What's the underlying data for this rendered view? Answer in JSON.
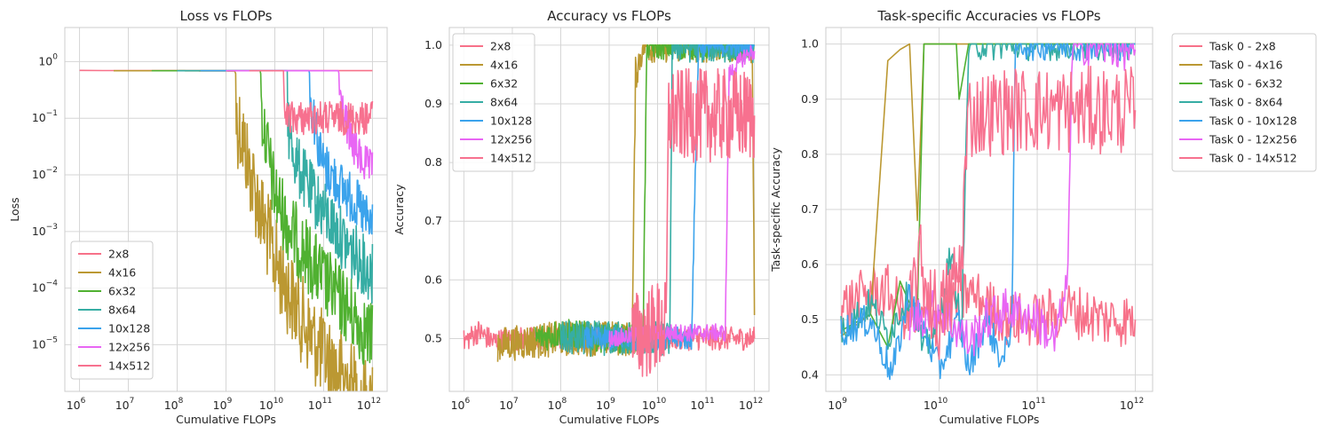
{
  "colors": {
    "2x8": "#f77189",
    "4x16": "#bb9832",
    "6x32": "#50b131",
    "8x64": "#36ada4",
    "10x128": "#3ba3ec",
    "12x256": "#e866f4",
    "14x512": "#f7718f"
  },
  "chart_data": [
    {
      "type": "line",
      "title": "Loss vs FLOPs",
      "xlabel": "Cumulative FLOPs",
      "ylabel": "Loss",
      "xscale": "log",
      "yscale": "log",
      "xlim": [
        500000,
        2000000000000
      ],
      "ylim": [
        1.5e-06,
        4
      ],
      "xticks": [
        {
          "value": 1000000.0,
          "base": "10",
          "exp": "6"
        },
        {
          "value": 10000000.0,
          "base": "10",
          "exp": "7"
        },
        {
          "value": 100000000.0,
          "base": "10",
          "exp": "8"
        },
        {
          "value": 1000000000.0,
          "base": "10",
          "exp": "9"
        },
        {
          "value": 10000000000.0,
          "base": "10",
          "exp": "10"
        },
        {
          "value": 100000000000.0,
          "base": "10",
          "exp": "11"
        },
        {
          "value": 1000000000000.0,
          "base": "10",
          "exp": "12"
        }
      ],
      "yticks": [
        {
          "value": 1e-05,
          "base": "10",
          "exp": "−5"
        },
        {
          "value": 0.0001,
          "base": "10",
          "exp": "−4"
        },
        {
          "value": 0.001,
          "base": "10",
          "exp": "−3"
        },
        {
          "value": 0.01,
          "base": "10",
          "exp": "−2"
        },
        {
          "value": 0.1,
          "base": "10",
          "exp": "−1"
        },
        {
          "value": 1,
          "base": "10",
          "exp": "0"
        }
      ],
      "grid": true,
      "legend": "lower-left",
      "series": [
        {
          "name": "2x8",
          "x": [
            1000000.0,
            3000000.0,
            10000000.0,
            100000000.0,
            1000000000.0,
            10000000000.0,
            100000000000.0,
            1000000000000.0
          ],
          "y": [
            0.7,
            0.695,
            0.694,
            0.693,
            0.693,
            0.693,
            0.693,
            0.693
          ]
        },
        {
          "name": "4x16",
          "x": [
            5000000.0,
            100000000.0,
            1500000000.0,
            2000000000.0,
            3000000000.0,
            5000000000.0,
            10000000000.0,
            20000000000.0,
            50000000000.0,
            100000000000.0,
            300000000000.0,
            1000000000000.0
          ],
          "y": [
            0.69,
            0.69,
            0.68,
            0.4,
            0.08,
            0.015,
            0.002,
            0.0005,
            0.0001,
            4e-05,
            1.5e-05,
            4e-06
          ],
          "noise": 1.6
        },
        {
          "name": "6x32",
          "x": [
            30000000.0,
            100000000.0,
            1000000000.0,
            5000000000.0,
            6000000000.0,
            8000000000.0,
            10000000000.0,
            20000000000.0,
            50000000000.0,
            100000000000.0,
            300000000000.0,
            1000000000000.0
          ],
          "y": [
            0.69,
            0.69,
            0.69,
            0.69,
            0.3,
            0.06,
            0.02,
            0.005,
            0.0015,
            0.0006,
            0.0002,
            5e-05
          ],
          "noise": 1.3
        },
        {
          "name": "8x64",
          "x": [
            100000000.0,
            1000000000.0,
            10000000000.0,
            18000000000.0,
            20000000000.0,
            30000000000.0,
            50000000000.0,
            100000000000.0,
            300000000000.0,
            1000000000000.0
          ],
          "y": [
            0.69,
            0.69,
            0.69,
            0.69,
            0.15,
            0.05,
            0.02,
            0.008,
            0.002,
            0.0006
          ],
          "noise": 1.1
        },
        {
          "name": "10x128",
          "x": [
            300000000.0,
            1000000000.0,
            10000000000.0,
            50000000000.0,
            70000000000.0,
            80000000000.0,
            100000000000.0,
            200000000000.0,
            500000000000.0,
            1000000000000.0
          ],
          "y": [
            0.69,
            0.69,
            0.69,
            0.69,
            0.2,
            0.08,
            0.04,
            0.02,
            0.008,
            0.003
          ],
          "noise": 0.9
        },
        {
          "name": "12x256",
          "x": [
            1000000000.0,
            10000000000.0,
            100000000000.0,
            200000000000.0,
            280000000000.0,
            400000000000.0,
            600000000000.0,
            1000000000000.0
          ],
          "y": [
            0.69,
            0.69,
            0.69,
            0.69,
            0.2,
            0.07,
            0.04,
            0.025
          ],
          "noise": 0.7
        },
        {
          "name": "14x512",
          "x": [
            3000000000.0,
            10000000000.0,
            15000000000.0,
            17000000000.0,
            30000000000.0,
            100000000000.0,
            300000000000.0,
            1000000000000.0
          ],
          "y": [
            0.69,
            0.69,
            0.69,
            0.2,
            0.2,
            0.2,
            0.2,
            0.2
          ],
          "noise": 0.6
        }
      ]
    },
    {
      "type": "line",
      "title": "Accuracy vs FLOPs",
      "xlabel": "Cumulative FLOPs",
      "ylabel": "Accuracy",
      "xscale": "log",
      "yscale": "linear",
      "xlim": [
        500000,
        2000000000000
      ],
      "ylim": [
        0.41,
        1.03
      ],
      "xticks": [
        {
          "value": 1000000.0,
          "base": "10",
          "exp": "6"
        },
        {
          "value": 10000000.0,
          "base": "10",
          "exp": "7"
        },
        {
          "value": 100000000.0,
          "base": "10",
          "exp": "8"
        },
        {
          "value": 1000000000.0,
          "base": "10",
          "exp": "9"
        },
        {
          "value": 10000000000.0,
          "base": "10",
          "exp": "10"
        },
        {
          "value": 100000000000.0,
          "base": "10",
          "exp": "11"
        },
        {
          "value": 1000000000000.0,
          "base": "10",
          "exp": "12"
        }
      ],
      "yticks": [
        {
          "value": 0.5,
          "label": "0.5"
        },
        {
          "value": 0.6,
          "label": "0.6"
        },
        {
          "value": 0.7,
          "label": "0.7"
        },
        {
          "value": 0.8,
          "label": "0.8"
        },
        {
          "value": 0.9,
          "label": "0.9"
        },
        {
          "value": 1.0,
          "label": "1.0"
        }
      ],
      "grid": true,
      "legend": "upper-left",
      "series": [
        {
          "name": "2x8",
          "x": [
            1000000.0,
            2000000.0,
            4000000.0,
            10000000.0,
            100000000.0,
            1000000000.0,
            10000000000.0,
            100000000000.0,
            1000000000000.0
          ],
          "y": [
            0.495,
            0.512,
            0.495,
            0.5,
            0.5,
            0.5,
            0.5,
            0.5,
            0.5
          ],
          "noise": 0.02
        },
        {
          "name": "4x16",
          "x": [
            5000000.0,
            100000000.0,
            3000000000.0,
            3500000000.0,
            5000000000.0,
            100000000000.0,
            900000000000.0,
            1000000000000.0
          ],
          "y": [
            0.49,
            0.5,
            0.5,
            0.95,
            1.0,
            1.0,
            1.0,
            0.54
          ],
          "noise": 0.03
        },
        {
          "name": "6x32",
          "x": [
            30000000.0,
            100000000.0,
            1000000000.0,
            5000000000.0,
            6000000000.0,
            10000000000.0,
            1000000000000.0
          ],
          "y": [
            0.5,
            0.51,
            0.5,
            0.5,
            1.0,
            1.0,
            1.0
          ],
          "noise": 0.025
        },
        {
          "name": "8x64",
          "x": [
            100000000.0,
            1000000000.0,
            10000000000.0,
            18000000000.0,
            20000000000.0,
            100000000000.0,
            1000000000000.0
          ],
          "y": [
            0.5,
            0.5,
            0.5,
            0.5,
            1.0,
            1.0,
            1.0
          ],
          "noise": 0.03
        },
        {
          "name": "10x128",
          "x": [
            300000000.0,
            1000000000.0,
            10000000000.0,
            50000000000.0,
            70000000000.0,
            100000000000.0,
            1000000000000.0
          ],
          "y": [
            0.5,
            0.5,
            0.5,
            0.5,
            1.0,
            1.0,
            1.0
          ],
          "noise": 0.02
        },
        {
          "name": "12x256",
          "x": [
            1000000000.0,
            10000000000.0,
            100000000000.0,
            250000000000.0,
            300000000000.0,
            600000000000.0,
            1000000000000.0
          ],
          "y": [
            0.5,
            0.51,
            0.51,
            0.51,
            0.95,
            0.98,
            0.99
          ],
          "noise": 0.015
        },
        {
          "name": "14x512",
          "x": [
            3000000000.0,
            10000000000.0,
            15000000000.0,
            17000000000.0,
            50000000000.0,
            100000000000.0,
            300000000000.0,
            1000000000000.0
          ],
          "y": [
            0.5,
            0.52,
            0.52,
            0.88,
            0.88,
            0.88,
            0.88,
            0.88
          ],
          "noise": 0.08
        }
      ]
    },
    {
      "type": "line",
      "title": "Task-specific Accuracies vs FLOPs",
      "xlabel": "Cumulative FLOPs",
      "ylabel": "Task-specific Accuracy",
      "xscale": "log",
      "yscale": "linear",
      "xlim": [
        700000000,
        1500000000000
      ],
      "ylim": [
        0.37,
        1.03
      ],
      "xticks": [
        {
          "value": 1000000000.0,
          "base": "10",
          "exp": "9"
        },
        {
          "value": 10000000000.0,
          "base": "10",
          "exp": "10"
        },
        {
          "value": 100000000000.0,
          "base": "10",
          "exp": "11"
        },
        {
          "value": 1000000000000.0,
          "base": "10",
          "exp": "12"
        }
      ],
      "yticks": [
        {
          "value": 0.4,
          "label": "0.4"
        },
        {
          "value": 0.5,
          "label": "0.5"
        },
        {
          "value": 0.6,
          "label": "0.6"
        },
        {
          "value": 0.7,
          "label": "0.7"
        },
        {
          "value": 0.8,
          "label": "0.8"
        },
        {
          "value": 0.9,
          "label": "0.9"
        },
        {
          "value": 1.0,
          "label": "1.0"
        }
      ],
      "grid": true,
      "legend": "outside-upper-right",
      "series": [
        {
          "name": "Task 0 - 2x8",
          "x": [
            1000000000.0,
            2000000000.0,
            3000000000.0,
            5000000000.0,
            10000000000.0,
            20000000000.0,
            50000000000.0,
            100000000000.0,
            200000000000.0,
            500000000000.0,
            1000000000000.0
          ],
          "y": [
            0.52,
            0.55,
            0.55,
            0.5,
            0.5,
            0.55,
            0.5,
            0.5,
            0.52,
            0.5,
            0.5
          ],
          "noise": 0.05
        },
        {
          "name": "Task 0 - 4x16",
          "x": [
            1000000000.0,
            2000000000.0,
            3000000000.0,
            4000000000.0,
            5000000000.0,
            6000000000.0,
            7000000000.0,
            10000000000.0,
            20000000000.0,
            100000000000.0,
            1000000000000.0
          ],
          "y": [
            0.47,
            0.51,
            0.97,
            0.99,
            1.0,
            0.68,
            1.0,
            1.0,
            1.0,
            1.0,
            1.0
          ]
        },
        {
          "name": "Task 0 - 6x32",
          "x": [
            1000000000.0,
            2000000000.0,
            3000000000.0,
            4000000000.0,
            5000000000.0,
            6000000000.0,
            7000000000.0,
            10000000000.0,
            15000000000.0,
            16000000000.0,
            20000000000.0,
            100000000000.0,
            1000000000000.0
          ],
          "y": [
            0.48,
            0.51,
            0.45,
            0.57,
            0.53,
            0.52,
            1.0,
            1.0,
            1.0,
            0.9,
            1.0,
            1.0,
            1.0
          ]
        },
        {
          "name": "Task 0 - 8x64",
          "x": [
            1000000000.0,
            2000000000.0,
            3000000000.0,
            5000000000.0,
            7000000000.0,
            10000000000.0,
            13000000000.0,
            17000000000.0,
            20000000000.0,
            30000000000.0,
            100000000000.0,
            1000000000000.0
          ],
          "y": [
            0.48,
            0.53,
            0.47,
            0.55,
            0.44,
            0.5,
            0.62,
            0.48,
            1.0,
            1.0,
            1.0,
            1.0
          ],
          "noise": 0.03
        },
        {
          "name": "Task 0 - 10x128",
          "x": [
            1000000000.0,
            2000000000.0,
            3300000000.0,
            5000000000.0,
            10000000000.0,
            16000000000.0,
            20000000000.0,
            30000000000.0,
            45000000000.0,
            55000000000.0,
            60000000000.0,
            100000000000.0,
            1000000000000.0
          ],
          "y": [
            0.48,
            0.5,
            0.4,
            0.55,
            0.41,
            0.5,
            0.41,
            0.5,
            0.42,
            0.5,
            1.0,
            1.0,
            1.0
          ],
          "noise": 0.03
        },
        {
          "name": "Task 0 - 12x256",
          "x": [
            5000000000.0,
            10000000000.0,
            20000000000.0,
            30000000000.0,
            50000000000.0,
            100000000000.0,
            150000000000.0,
            200000000000.0,
            230000000000.0,
            300000000000.0,
            1000000000000.0
          ],
          "y": [
            0.5,
            0.52,
            0.46,
            0.5,
            0.52,
            0.5,
            0.46,
            0.55,
            1.0,
            1.0,
            0.99
          ],
          "noise": 0.04
        },
        {
          "name": "Task 0 - 14x512",
          "x": [
            5000000000.0,
            6000000000.0,
            10000000000.0,
            17000000000.0,
            18000000000.0,
            20000000000.0,
            50000000000.0,
            100000000000.0,
            300000000000.0,
            1000000000000.0
          ],
          "y": [
            0.5,
            0.61,
            0.5,
            0.6,
            0.73,
            0.87,
            0.88,
            0.88,
            0.88,
            0.88
          ],
          "noise": 0.08
        }
      ]
    }
  ]
}
